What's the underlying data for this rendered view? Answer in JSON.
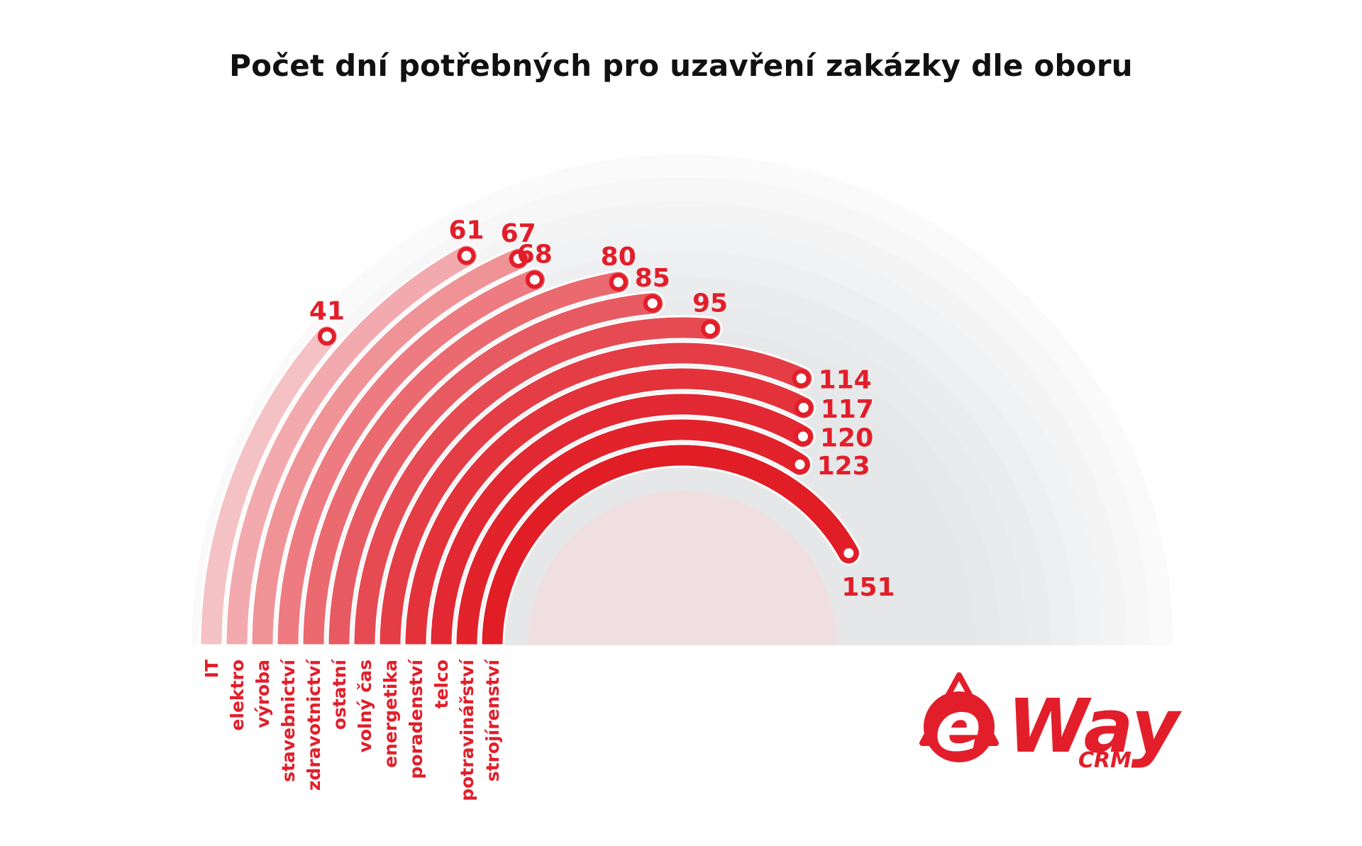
{
  "title": "Počet dní potřebných pro uzavření zakázky dle oboru",
  "chart_data": {
    "type": "radial_bar",
    "title": "Počet dní potřebných pro uzavření zakázky dle oboru",
    "categories": [
      "IT",
      "elektro",
      "výroba",
      "stavebnictví",
      "zdravotnictví",
      "ostatní",
      "volný čas",
      "energetika",
      "poradenství",
      "telco",
      "potravinářství",
      "strojírenství"
    ],
    "values": [
      41,
      61,
      67,
      68,
      80,
      85,
      95,
      114,
      117,
      120,
      123,
      151
    ],
    "value_labels": [
      "41",
      "61",
      "67",
      "68",
      "80",
      "85",
      "95",
      "114",
      "117",
      "120",
      "123",
      "151"
    ],
    "range": [
      0,
      180
    ],
    "colors": [
      "#f4c2c5",
      "#f2aaae",
      "#ef9397",
      "#ed7b81",
      "#ea6a70",
      "#e85a61",
      "#e64b53",
      "#e53d46",
      "#e4323b",
      "#e22832",
      "#e2232c",
      "#e11d26"
    ]
  },
  "logo": {
    "brand": "eWay",
    "brand_e": "e",
    "brand_way": "Way",
    "sub": "CRM",
    "color": "#e21e2a"
  }
}
